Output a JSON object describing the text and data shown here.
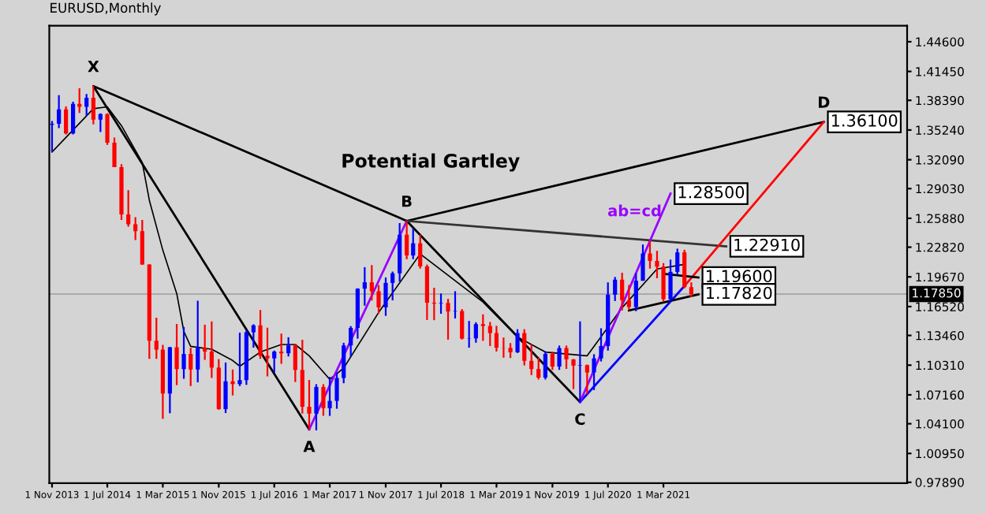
{
  "chart_data": {
    "type": "candlestick",
    "title": "EURUSD,Monthly",
    "x": [
      "2013-11",
      "2013-12",
      "2014-01",
      "2014-02",
      "2014-03",
      "2014-04",
      "2014-05",
      "2014-06",
      "2014-07",
      "2014-08",
      "2014-09",
      "2014-10",
      "2014-11",
      "2014-12",
      "2015-01",
      "2015-02",
      "2015-03",
      "2015-04",
      "2015-05",
      "2015-06",
      "2015-07",
      "2015-08",
      "2015-09",
      "2015-10",
      "2015-11",
      "2015-12",
      "2016-01",
      "2016-02",
      "2016-03",
      "2016-04",
      "2016-05",
      "2016-06",
      "2016-07",
      "2016-08",
      "2016-09",
      "2016-10",
      "2016-11",
      "2016-12",
      "2017-01",
      "2017-02",
      "2017-03",
      "2017-04",
      "2017-05",
      "2017-06",
      "2017-07",
      "2017-08",
      "2017-09",
      "2017-10",
      "2017-11",
      "2017-12",
      "2018-01",
      "2018-02",
      "2018-03",
      "2018-04",
      "2018-05",
      "2018-06",
      "2018-07",
      "2018-08",
      "2018-09",
      "2018-10",
      "2018-11",
      "2018-12",
      "2019-01",
      "2019-02",
      "2019-03",
      "2019-04",
      "2019-05",
      "2019-06",
      "2019-07",
      "2019-08",
      "2019-09",
      "2019-10",
      "2019-11",
      "2019-12",
      "2020-01",
      "2020-02",
      "2020-03",
      "2020-04",
      "2020-05",
      "2020-06",
      "2020-07",
      "2020-08",
      "2020-09",
      "2020-10",
      "2020-11",
      "2020-12",
      "2021-01",
      "2021-02",
      "2021-03",
      "2021-04",
      "2021-05",
      "2021-06",
      "2021-07"
    ],
    "ohlc": [
      [
        1.358,
        1.362,
        1.3296,
        1.359
      ],
      [
        1.359,
        1.3893,
        1.3545,
        1.3743
      ],
      [
        1.3743,
        1.3775,
        1.3477,
        1.3487
      ],
      [
        1.3487,
        1.3825,
        1.3477,
        1.3802
      ],
      [
        1.3802,
        1.3967,
        1.3705,
        1.3769
      ],
      [
        1.3769,
        1.3906,
        1.3673,
        1.3867
      ],
      [
        1.3867,
        1.3993,
        1.3585,
        1.3635
      ],
      [
        1.3635,
        1.37,
        1.3503,
        1.3692
      ],
      [
        1.3692,
        1.37,
        1.3367,
        1.339
      ],
      [
        1.339,
        1.3444,
        1.313,
        1.3131
      ],
      [
        1.3131,
        1.3162,
        1.2571,
        1.263
      ],
      [
        1.263,
        1.2887,
        1.25,
        1.2525
      ],
      [
        1.2525,
        1.26,
        1.2358,
        1.2452
      ],
      [
        1.2452,
        1.257,
        1.2095,
        1.2098
      ],
      [
        1.2098,
        1.21,
        1.1098,
        1.129
      ],
      [
        1.129,
        1.1534,
        1.1098,
        1.1196
      ],
      [
        1.1196,
        1.1245,
        1.0462,
        1.073
      ],
      [
        1.073,
        1.1224,
        1.0521,
        1.1221
      ],
      [
        1.1221,
        1.1467,
        1.0819,
        1.0988
      ],
      [
        1.0988,
        1.1436,
        1.0886,
        1.115
      ],
      [
        1.115,
        1.1215,
        1.0809,
        1.0985
      ],
      [
        1.0985,
        1.1714,
        1.0848,
        1.1212
      ],
      [
        1.1212,
        1.146,
        1.1087,
        1.1176
      ],
      [
        1.1176,
        1.1495,
        1.0896,
        1.1005
      ],
      [
        1.1005,
        1.1095,
        1.0558,
        1.0565
      ],
      [
        1.0565,
        1.1059,
        1.0523,
        1.086
      ],
      [
        1.086,
        1.0985,
        1.071,
        1.083
      ],
      [
        1.083,
        1.1376,
        1.081,
        1.0872
      ],
      [
        1.0872,
        1.14,
        1.0822,
        1.138
      ],
      [
        1.138,
        1.1464,
        1.1217,
        1.1453
      ],
      [
        1.1453,
        1.1616,
        1.1098,
        1.113
      ],
      [
        1.113,
        1.1428,
        1.0912,
        1.1103
      ],
      [
        1.1103,
        1.1186,
        1.0952,
        1.1175
      ],
      [
        1.1175,
        1.1366,
        1.1045,
        1.1157
      ],
      [
        1.1157,
        1.1327,
        1.1123,
        1.124
      ],
      [
        1.124,
        1.1257,
        1.0852,
        1.098
      ],
      [
        1.098,
        1.13,
        1.0518,
        1.059
      ],
      [
        1.059,
        1.0874,
        1.0352,
        1.0517
      ],
      [
        1.0517,
        1.0829,
        1.034,
        1.08
      ],
      [
        1.08,
        1.0829,
        1.0494,
        1.0575
      ],
      [
        1.0575,
        1.0906,
        1.0493,
        1.0652
      ],
      [
        1.0652,
        1.0951,
        1.0569,
        1.0895
      ],
      [
        1.0895,
        1.1268,
        1.0839,
        1.124
      ],
      [
        1.124,
        1.1445,
        1.1118,
        1.1426
      ],
      [
        1.1426,
        1.1846,
        1.1312,
        1.1842
      ],
      [
        1.1842,
        1.207,
        1.1662,
        1.191
      ],
      [
        1.191,
        1.2092,
        1.1717,
        1.1814
      ],
      [
        1.1814,
        1.188,
        1.1575,
        1.1644
      ],
      [
        1.1644,
        1.1961,
        1.1554,
        1.1903
      ],
      [
        1.1903,
        1.2023,
        1.1718,
        1.2005
      ],
      [
        1.2005,
        1.2537,
        1.1916,
        1.2414
      ],
      [
        1.2414,
        1.2556,
        1.2154,
        1.2194
      ],
      [
        1.2194,
        1.2476,
        1.2155,
        1.2323
      ],
      [
        1.2323,
        1.2414,
        1.2055,
        1.2078
      ],
      [
        1.2078,
        1.2097,
        1.151,
        1.1693
      ],
      [
        1.1693,
        1.1852,
        1.1508,
        1.1684
      ],
      [
        1.1684,
        1.1791,
        1.1576,
        1.169
      ],
      [
        1.169,
        1.1734,
        1.1301,
        1.16
      ],
      [
        1.16,
        1.1815,
        1.1526,
        1.1605
      ],
      [
        1.1605,
        1.1625,
        1.1303,
        1.1312
      ],
      [
        1.1312,
        1.15,
        1.1216,
        1.1315
      ],
      [
        1.1315,
        1.1486,
        1.1269,
        1.1466
      ],
      [
        1.1466,
        1.157,
        1.1289,
        1.1446
      ],
      [
        1.1446,
        1.1489,
        1.1234,
        1.1371
      ],
      [
        1.1371,
        1.1448,
        1.1176,
        1.1216
      ],
      [
        1.1216,
        1.1324,
        1.111,
        1.1214
      ],
      [
        1.1214,
        1.1265,
        1.1107,
        1.1168
      ],
      [
        1.1168,
        1.1412,
        1.116,
        1.1371
      ],
      [
        1.1371,
        1.1412,
        1.1028,
        1.1077
      ],
      [
        1.1077,
        1.125,
        1.0926,
        1.099
      ],
      [
        1.099,
        1.1109,
        1.0879,
        1.0899
      ],
      [
        1.0899,
        1.1179,
        1.0879,
        1.1151
      ],
      [
        1.1151,
        1.1175,
        1.0981,
        1.1016
      ],
      [
        1.1016,
        1.1239,
        1.0981,
        1.1212
      ],
      [
        1.1212,
        1.1239,
        1.0992,
        1.1092
      ],
      [
        1.1092,
        1.1096,
        1.0778,
        1.1026
      ],
      [
        1.1026,
        1.1495,
        1.0636,
        1.1031
      ],
      [
        1.1031,
        1.1038,
        1.0727,
        1.0953
      ],
      [
        1.0953,
        1.1147,
        1.0767,
        1.1103
      ],
      [
        1.1103,
        1.1422,
        1.107,
        1.1234
      ],
      [
        1.1234,
        1.1909,
        1.1185,
        1.1778
      ],
      [
        1.1778,
        1.1966,
        1.1711,
        1.1937
      ],
      [
        1.1937,
        1.2011,
        1.1612,
        1.172
      ],
      [
        1.172,
        1.188,
        1.1622,
        1.1647
      ],
      [
        1.1647,
        1.2004,
        1.1603,
        1.1926
      ],
      [
        1.1926,
        1.231,
        1.1925,
        1.2215
      ],
      [
        1.2215,
        1.2349,
        1.2055,
        1.2136
      ],
      [
        1.2136,
        1.2243,
        1.1952,
        1.2075
      ],
      [
        1.2075,
        1.2113,
        1.1704,
        1.173
      ],
      [
        1.173,
        1.215,
        1.1704,
        1.202
      ],
      [
        1.202,
        1.2266,
        1.1986,
        1.2227
      ],
      [
        1.2227,
        1.2254,
        1.1847,
        1.1858
      ],
      [
        1.1858,
        1.1909,
        1.1752,
        1.1785
      ]
    ],
    "colors": [
      "#0000ff",
      "#0000ff",
      "#ff0000",
      "#0000ff",
      "#ff0000",
      "#0000ff",
      "#ff0000",
      "#0000ff",
      "#ff0000",
      "#ff0000",
      "#ff0000",
      "#ff0000",
      "#ff0000",
      "#ff0000",
      "#ff0000",
      "#ff0000",
      "#ff0000",
      "#0000ff",
      "#ff0000",
      "#0000ff",
      "#ff0000",
      "#0000ff",
      "#ff0000",
      "#ff0000",
      "#ff0000",
      "#0000ff",
      "#ff0000",
      "#0000ff",
      "#0000ff",
      "#0000ff",
      "#ff0000",
      "#ff0000",
      "#0000ff",
      "#ff0000",
      "#0000ff",
      "#ff0000",
      "#ff0000",
      "#ff0000",
      "#0000ff",
      "#ff0000",
      "#0000ff",
      "#0000ff",
      "#0000ff",
      "#0000ff",
      "#0000ff",
      "#0000ff",
      "#ff0000",
      "#ff0000",
      "#0000ff",
      "#0000ff",
      "#0000ff",
      "#ff0000",
      "#0000ff",
      "#ff0000",
      "#ff0000",
      "#ff0000",
      "#0000ff",
      "#ff0000",
      "#0000ff",
      "#ff0000",
      "#0000ff",
      "#0000ff",
      "#ff0000",
      "#ff0000",
      "#ff0000",
      "#ff0000",
      "#ff0000",
      "#0000ff",
      "#ff0000",
      "#ff0000",
      "#ff0000",
      "#0000ff",
      "#ff0000",
      "#0000ff",
      "#ff0000",
      "#ff0000",
      "#0000ff",
      "#ff0000",
      "#0000ff",
      "#0000ff",
      "#0000ff",
      "#0000ff",
      "#ff0000",
      "#ff0000",
      "#0000ff",
      "#0000ff",
      "#ff0000",
      "#ff0000",
      "#ff0000",
      "#0000ff",
      "#0000ff",
      "#ff0000",
      "#ff0000"
    ],
    "series": [
      {
        "type": "line",
        "color": "#000000",
        "x": [
          "2013-11",
          "2014-05",
          "2014-07",
          "2014-09",
          "2014-12",
          "2015-01",
          "2015-03",
          "2015-05",
          "2015-06",
          "2015-07",
          "2015-10",
          "2016-01",
          "2016-02",
          "2016-05",
          "2016-08",
          "2016-10",
          "2016-12",
          "2017-03",
          "2017-05",
          "2017-10",
          "2018-04",
          "2019-01",
          "2019-06",
          "2019-10",
          "2020-04",
          "2020-09",
          "2021-02",
          "2021-06"
        ],
        "values": [
          1.329,
          1.375,
          1.377,
          1.357,
          1.318,
          1.278,
          1.225,
          1.179,
          1.139,
          1.123,
          1.12,
          1.108,
          1.102,
          1.117,
          1.125,
          1.125,
          1.113,
          1.088,
          1.1,
          1.159,
          1.221,
          1.17,
          1.133,
          1.117,
          1.113,
          1.164,
          1.205,
          1.21
        ]
      },
      {
        "type": "line",
        "color": "#000000",
        "x": [
          "2016-12",
          "2014-05",
          "2018-02",
          "2020-03",
          "2018-02",
          "2023-02"
        ],
        "values": [
          1.035,
          1.399,
          1.256,
          1.064,
          1.256,
          1.361
        ]
      },
      {
        "type": "line",
        "color": "#9900ff",
        "x": [
          "2016-12",
          "2018-02"
        ],
        "values": [
          1.035,
          1.256
        ]
      },
      {
        "type": "line",
        "color": "#333333",
        "x": [
          "2018-02",
          "2021-12"
        ],
        "values": [
          1.256,
          1.2291
        ],
        "value_labels": [
          null,
          "1.22910"
        ]
      },
      {
        "type": "line",
        "color": "#0000ff",
        "x": [
          "2020-03",
          "2021-06"
        ],
        "values": [
          1.064,
          1.187
        ]
      },
      {
        "type": "line",
        "color": "#9900ff",
        "x": [
          "2020-03",
          "2021-04"
        ],
        "values": [
          1.064,
          1.285
        ],
        "value_labels": [
          null,
          "1.28500"
        ]
      },
      {
        "type": "line",
        "color": "#ff0000",
        "x": [
          "2021-06",
          "2023-02"
        ],
        "values": [
          1.187,
          1.361
        ],
        "value_labels": [
          null,
          "1.36100"
        ]
      },
      {
        "type": "line",
        "color": "#000000",
        "x": [
          "2021-03",
          "2021-08"
        ],
        "values": [
          1.2,
          1.196
        ],
        "value_labels": [
          null,
          "1.19600"
        ]
      },
      {
        "type": "line",
        "color": "#000000",
        "x": [
          "2020-10",
          "2021-08"
        ],
        "values": [
          1.161,
          1.1782
        ],
        "value_labels": [
          null,
          "1.17820"
        ]
      }
    ],
    "annotations": [
      "Potential Gartley",
      {
        "text": "X",
        "x": "2014-05",
        "y": 1.399
      },
      {
        "text": "A",
        "x": "2016-12",
        "y": 1.035
      },
      {
        "text": "B",
        "x": "2018-02",
        "y": 1.256
      },
      {
        "text": "C",
        "x": "2020-03",
        "y": 1.064
      },
      {
        "text": "D",
        "x": "2023-02",
        "y": 1.361
      },
      {
        "text": "ab=cd",
        "x": "2021-04",
        "y": 1.285
      }
    ],
    "ref_lines": [
      {
        "axis": "y",
        "value": 1.1785,
        "label": "1.17850",
        "color": "#aaaaaa"
      }
    ],
    "xlim": [
      "2013-10-20",
      "2024-02-01"
    ],
    "xticks": [
      {
        "value": "2013-11-01",
        "label": "1 Nov 2013"
      },
      {
        "value": "2014-07-01",
        "label": "1 Jul 2014"
      },
      {
        "value": "2015-03-01",
        "label": "1 Mar 2015"
      },
      {
        "value": "2015-11-01",
        "label": "1 Nov 2015"
      },
      {
        "value": "2016-07-01",
        "label": "1 Jul 2016"
      },
      {
        "value": "2017-03-01",
        "label": "1 Mar 2017"
      },
      {
        "value": "2017-11-01",
        "label": "1 Nov 2017"
      },
      {
        "value": "2018-07-01",
        "label": "1 Jul 2018"
      },
      {
        "value": "2019-03-01",
        "label": "1 Mar 2019"
      },
      {
        "value": "2019-11-01",
        "label": "1 Nov 2019"
      },
      {
        "value": "2020-07-01",
        "label": "1 Jul 2020"
      },
      {
        "value": "2021-03-01",
        "label": "1 Mar 2021"
      }
    ],
    "ylim": [
      0.978,
      1.463
    ],
    "yticks": [
      {
        "value": 1.446,
        "label": "1.44600"
      },
      {
        "value": 1.4145,
        "label": "1.41450"
      },
      {
        "value": 1.3839,
        "label": "1.38390"
      },
      {
        "value": 1.3524,
        "label": "1.35240"
      },
      {
        "value": 1.3209,
        "label": "1.32090"
      },
      {
        "value": 1.2903,
        "label": "1.29030"
      },
      {
        "value": 1.2588,
        "label": "1.25880"
      },
      {
        "value": 1.2282,
        "label": "1.22820"
      },
      {
        "value": 1.1967,
        "label": "1.19670"
      },
      {
        "value": 1.1652,
        "label": "1.16520"
      },
      {
        "value": 1.1346,
        "label": "1.13460"
      },
      {
        "value": 1.1031,
        "label": "1.10310"
      },
      {
        "value": 1.0716,
        "label": "1.07160"
      },
      {
        "value": 1.041,
        "label": "1.04100"
      },
      {
        "value": 1.0095,
        "label": "1.00950"
      },
      {
        "value": 0.9789,
        "label": "0.97890"
      }
    ]
  }
}
